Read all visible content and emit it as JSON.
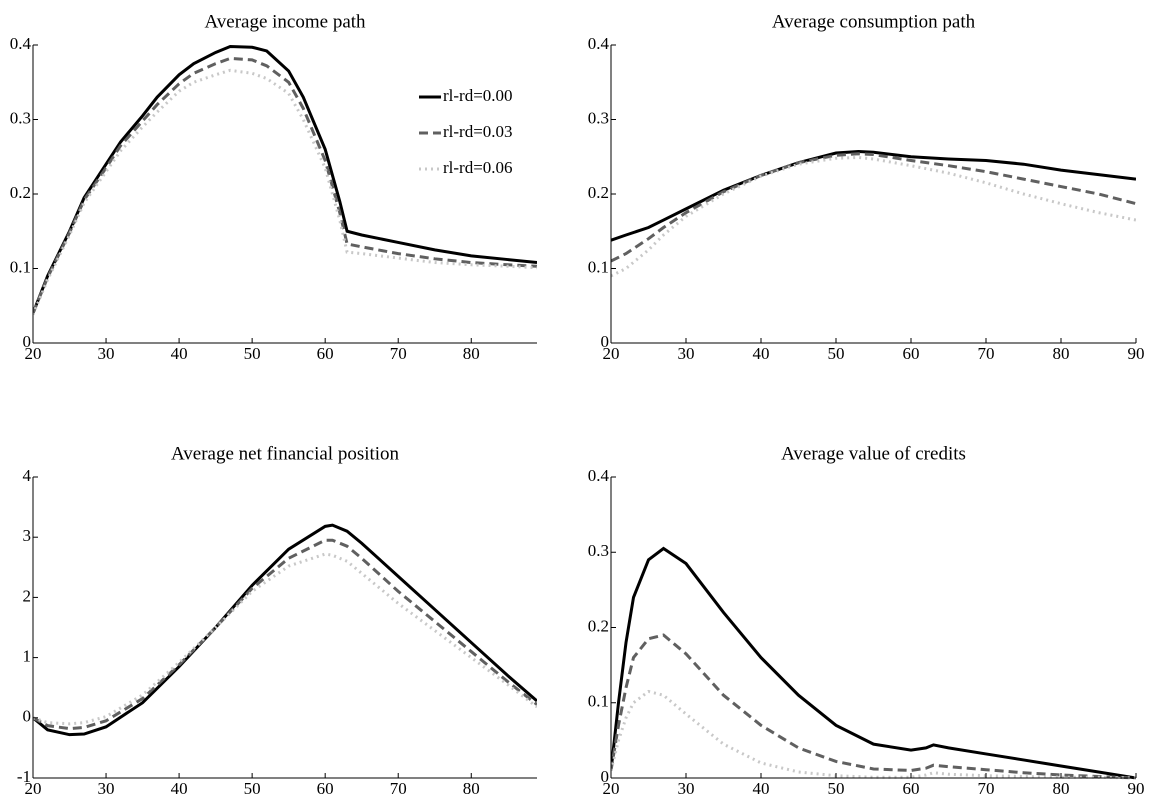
{
  "chart_data": [
    {
      "type": "line",
      "title": "Average income path",
      "x": [
        20,
        22,
        25,
        27,
        30,
        32,
        35,
        37,
        40,
        42,
        45,
        47,
        50,
        52,
        55,
        57,
        60,
        62,
        63,
        65,
        70,
        75,
        80,
        85,
        89
      ],
      "xlim": [
        20,
        89
      ],
      "xticks": [
        20,
        30,
        40,
        50,
        60,
        70,
        80
      ],
      "ylim": [
        0,
        0.4
      ],
      "yticks": [
        0,
        0.1,
        0.2,
        0.3,
        0.4
      ],
      "legend": "upper right",
      "series": [
        {
          "name": "rl-rd=0.00",
          "color": "#000000",
          "dash": "solid",
          "values": [
            0.04,
            0.09,
            0.15,
            0.195,
            0.24,
            0.27,
            0.305,
            0.33,
            0.36,
            0.375,
            0.39,
            0.398,
            0.397,
            0.392,
            0.365,
            0.33,
            0.26,
            0.19,
            0.15,
            0.145,
            0.135,
            0.125,
            0.117,
            0.112,
            0.108
          ]
        },
        {
          "name": "rl-rd=0.03",
          "color": "#606060",
          "dash": "dashed",
          "values": [
            0.04,
            0.088,
            0.148,
            0.192,
            0.235,
            0.265,
            0.298,
            0.32,
            0.348,
            0.362,
            0.375,
            0.382,
            0.38,
            0.372,
            0.35,
            0.315,
            0.245,
            0.175,
            0.133,
            0.129,
            0.12,
            0.113,
            0.108,
            0.105,
            0.103
          ]
        },
        {
          "name": "rl-rd=0.06",
          "color": "#c8c8c8",
          "dash": "dotted",
          "values": [
            0.038,
            0.085,
            0.145,
            0.188,
            0.23,
            0.258,
            0.29,
            0.31,
            0.338,
            0.35,
            0.36,
            0.366,
            0.362,
            0.355,
            0.335,
            0.3,
            0.235,
            0.165,
            0.122,
            0.12,
            0.114,
            0.108,
            0.105,
            0.103,
            0.101
          ]
        }
      ]
    },
    {
      "type": "line",
      "title": "Average consumption path",
      "x": [
        20,
        22,
        25,
        27,
        30,
        35,
        40,
        45,
        50,
        53,
        55,
        60,
        65,
        70,
        75,
        80,
        85,
        90
      ],
      "xlim": [
        20,
        90
      ],
      "xticks": [
        20,
        30,
        40,
        50,
        60,
        70,
        80,
        90
      ],
      "ylim": [
        0,
        0.4
      ],
      "yticks": [
        0,
        0.1,
        0.2,
        0.3,
        0.4
      ],
      "series": [
        {
          "color": "#000000",
          "dash": "solid",
          "values": [
            0.138,
            0.145,
            0.155,
            0.165,
            0.18,
            0.205,
            0.225,
            0.242,
            0.255,
            0.257,
            0.256,
            0.25,
            0.247,
            0.245,
            0.24,
            0.232,
            0.226,
            0.22
          ]
        },
        {
          "color": "#606060",
          "dash": "dashed",
          "values": [
            0.11,
            0.12,
            0.14,
            0.155,
            0.175,
            0.203,
            0.225,
            0.242,
            0.252,
            0.254,
            0.253,
            0.245,
            0.238,
            0.23,
            0.22,
            0.21,
            0.2,
            0.187
          ]
        },
        {
          "color": "#c8c8c8",
          "dash": "dotted",
          "values": [
            0.09,
            0.1,
            0.125,
            0.145,
            0.17,
            0.2,
            0.224,
            0.24,
            0.248,
            0.249,
            0.247,
            0.238,
            0.228,
            0.215,
            0.2,
            0.187,
            0.175,
            0.165
          ]
        }
      ]
    },
    {
      "type": "line",
      "title": "Average net financial position",
      "x": [
        20,
        22,
        25,
        27,
        30,
        35,
        40,
        45,
        50,
        55,
        60,
        61,
        63,
        65,
        70,
        75,
        80,
        85,
        89
      ],
      "xlim": [
        20,
        89
      ],
      "xticks": [
        20,
        30,
        40,
        50,
        60,
        70,
        80
      ],
      "ylim": [
        -1,
        4
      ],
      "yticks": [
        -1,
        0,
        1,
        2,
        3,
        4
      ],
      "series": [
        {
          "color": "#000000",
          "dash": "solid",
          "values": [
            0,
            -0.2,
            -0.28,
            -0.27,
            -0.15,
            0.25,
            0.85,
            1.5,
            2.2,
            2.8,
            3.18,
            3.2,
            3.1,
            2.9,
            2.35,
            1.8,
            1.25,
            0.7,
            0.28
          ]
        },
        {
          "color": "#606060",
          "dash": "dashed",
          "values": [
            0,
            -0.13,
            -0.18,
            -0.16,
            -0.05,
            0.32,
            0.88,
            1.5,
            2.15,
            2.65,
            2.95,
            2.95,
            2.85,
            2.65,
            2.1,
            1.6,
            1.1,
            0.6,
            0.22
          ]
        },
        {
          "color": "#c8c8c8",
          "dash": "dotted",
          "values": [
            0,
            -0.08,
            -0.1,
            -0.08,
            0.02,
            0.38,
            0.92,
            1.5,
            2.1,
            2.52,
            2.72,
            2.7,
            2.6,
            2.4,
            1.9,
            1.45,
            1.0,
            0.55,
            0.18
          ]
        }
      ]
    },
    {
      "type": "line",
      "title": "Average value of credits",
      "x": [
        20,
        21,
        22,
        23,
        25,
        27,
        30,
        35,
        40,
        45,
        50,
        55,
        60,
        62,
        63,
        65,
        70,
        75,
        80,
        85,
        90
      ],
      "xlim": [
        20,
        90
      ],
      "xticks": [
        20,
        30,
        40,
        50,
        60,
        70,
        80,
        90
      ],
      "ylim": [
        0,
        0.4
      ],
      "yticks": [
        0,
        0.1,
        0.2,
        0.3,
        0.4
      ],
      "series": [
        {
          "color": "#000000",
          "dash": "solid",
          "values": [
            0.01,
            0.1,
            0.18,
            0.24,
            0.29,
            0.305,
            0.285,
            0.22,
            0.16,
            0.11,
            0.07,
            0.045,
            0.037,
            0.04,
            0.044,
            0.04,
            0.032,
            0.024,
            0.016,
            0.008,
            0
          ]
        },
        {
          "color": "#606060",
          "dash": "dashed",
          "values": [
            0.01,
            0.07,
            0.12,
            0.16,
            0.185,
            0.19,
            0.165,
            0.11,
            0.07,
            0.04,
            0.022,
            0.012,
            0.01,
            0.013,
            0.017,
            0.015,
            0.011,
            0.007,
            0.004,
            0.002,
            0
          ]
        },
        {
          "color": "#c8c8c8",
          "dash": "dotted",
          "values": [
            0.01,
            0.05,
            0.08,
            0.1,
            0.115,
            0.11,
            0.085,
            0.045,
            0.02,
            0.008,
            0.003,
            0.001,
            0.001,
            0.004,
            0.007,
            0.005,
            0.003,
            0.002,
            0.001,
            0.001,
            0
          ]
        }
      ]
    }
  ]
}
